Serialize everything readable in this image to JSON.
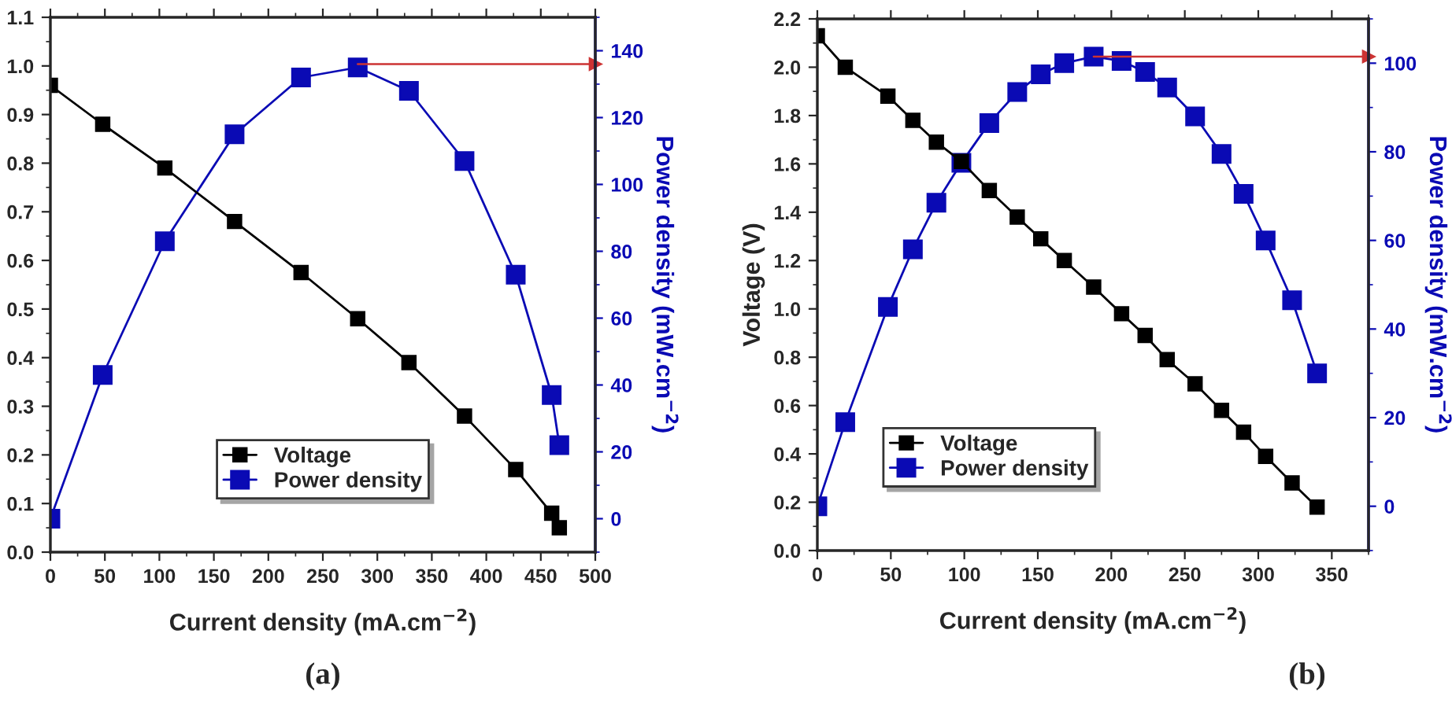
{
  "chart_data": [
    {
      "type": "line",
      "title": "(a)",
      "xlabel": "Current density (mA.cm$^{−2}$)",
      "y2label": "Power density (mW.cm$^{−2}$)",
      "x": [
        0,
        48,
        105,
        169,
        230,
        282,
        329,
        380,
        427,
        460,
        467
      ],
      "series": [
        {
          "name": "Voltage",
          "color": "#000000",
          "values": [
            0.96,
            0.88,
            0.79,
            0.68,
            0.575,
            0.48,
            0.39,
            0.28,
            0.17,
            0.08,
            0.05
          ]
        },
        {
          "name": "Power density",
          "color": "#0a0ab4",
          "axis": "y2",
          "values": [
            0,
            43,
            83,
            115,
            132,
            135,
            128,
            107,
            73,
            37,
            22
          ]
        }
      ],
      "xlim": [
        0,
        500
      ],
      "xticks": [
        0,
        50,
        100,
        150,
        200,
        250,
        300,
        350,
        400,
        450,
        500
      ],
      "ylim": [
        0,
        1.1
      ],
      "yticks": [
        {
          "value": 0,
          "label": "0.0"
        },
        0.1,
        0.2,
        0.3,
        0.4,
        0.5,
        0.6,
        0.7,
        0.8,
        0.9,
        {
          "value": 1,
          "label": "1.0"
        },
        1.1
      ],
      "y2lim": [
        -10,
        150
      ],
      "y2ticks": [
        0,
        20,
        40,
        60,
        80,
        100,
        120,
        140
      ],
      "ref_lines": [
        {
          "axis": "y2",
          "value": 136,
          "color": "#cc3333"
        }
      ],
      "marker": "square",
      "line_style": "solid",
      "grid": false,
      "legend": "bottom"
    },
    {
      "type": "line",
      "title": "(b)",
      "xlabel": "Current density (mA.cm$^{−2}$)",
      "ylabel": "Voltage (V)",
      "y2label": "Power density (mW.cm$^{−2}$)",
      "x": [
        0,
        19,
        48,
        65,
        81,
        98,
        117,
        136,
        152,
        168,
        188,
        207,
        223,
        238,
        257,
        275,
        290,
        305,
        323,
        340
      ],
      "series": [
        {
          "name": "Voltage",
          "color": "#000000",
          "values": [
            2.13,
            2.0,
            1.88,
            1.78,
            1.69,
            1.61,
            1.49,
            1.38,
            1.29,
            1.2,
            1.09,
            0.98,
            0.89,
            0.79,
            0.69,
            0.58,
            0.49,
            0.39,
            0.28,
            0.18
          ]
        },
        {
          "name": "Power density",
          "color": "#0a0ab4",
          "axis": "y2",
          "values": [
            0,
            19,
            45,
            58,
            68.5,
            77.5,
            86.5,
            93.5,
            97.5,
            100,
            101.5,
            100.5,
            98,
            94.5,
            88,
            79.5,
            70.5,
            60,
            46.5,
            30
          ]
        }
      ],
      "xlim": [
        0,
        375
      ],
      "xticks": [
        0,
        50,
        100,
        150,
        200,
        250,
        300,
        350
      ],
      "ylim": [
        0,
        2.2
      ],
      "yticks": [
        {
          "value": 0,
          "label": "0.0"
        },
        0.2,
        0.4,
        0.6,
        0.8,
        {
          "value": 1,
          "label": "1.0"
        },
        1.2,
        1.4,
        1.6,
        1.8,
        {
          "value": 2,
          "label": "2.0"
        },
        2.2
      ],
      "y2lim": [
        -10,
        110
      ],
      "y2ticks": [
        0,
        20,
        40,
        60,
        80,
        100
      ],
      "ref_lines": [
        {
          "axis": "y2",
          "value": 101.5,
          "color": "#cc3333"
        }
      ],
      "marker": "square",
      "line_style": "solid",
      "grid": false,
      "legend": "bottom left"
    }
  ]
}
